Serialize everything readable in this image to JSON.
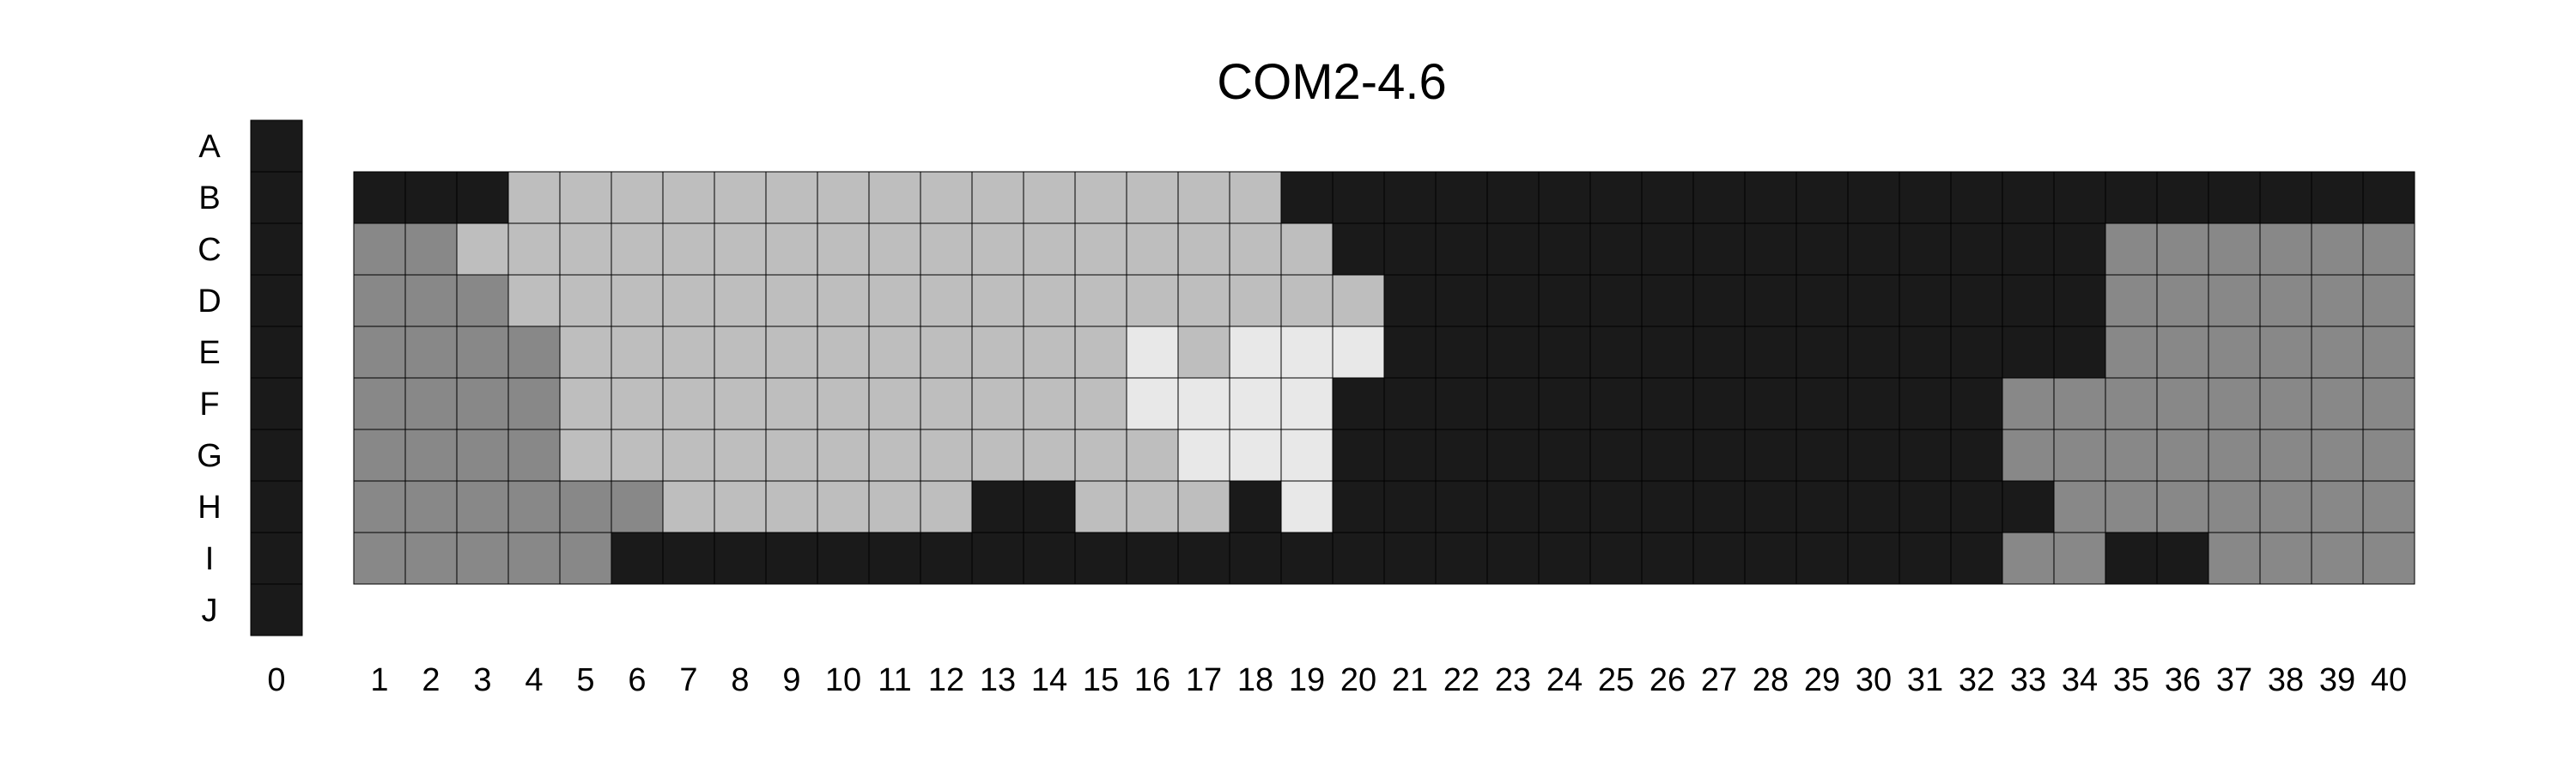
{
  "chart_data": {
    "type": "heatmap",
    "title": "COM2-4.6",
    "row_labels": [
      "A",
      "B",
      "C",
      "D",
      "E",
      "F",
      "G",
      "H",
      "I",
      "J"
    ],
    "col_labels": [
      "0",
      "1",
      "2",
      "3",
      "4",
      "5",
      "6",
      "7",
      "8",
      "9",
      "10",
      "11",
      "12",
      "13",
      "14",
      "15",
      "16",
      "17",
      "18",
      "19",
      "20",
      "21",
      "22",
      "23",
      "24",
      "25",
      "26",
      "27",
      "28",
      "29",
      "30",
      "31",
      "32",
      "33",
      "34",
      "35",
      "36",
      "37",
      "38",
      "39",
      "40"
    ],
    "color_levels": {
      "0": "#1a1a1a",
      "1": "#888888",
      "2": "#bebebe",
      "3": "#e8e8e8"
    },
    "column_0": {
      "rows": [
        "A",
        "B",
        "C",
        "D",
        "E",
        "F",
        "G",
        "H",
        "I",
        "J"
      ],
      "level": 0
    },
    "grid_rows": [
      "B",
      "C",
      "D",
      "E",
      "F",
      "G",
      "H",
      "I"
    ],
    "grid_cols": [
      "1",
      "2",
      "3",
      "4",
      "5",
      "6",
      "7",
      "8",
      "9",
      "10",
      "11",
      "12",
      "13",
      "14",
      "15",
      "16",
      "17",
      "18",
      "19",
      "20",
      "21",
      "22",
      "23",
      "24",
      "25",
      "26",
      "27",
      "28",
      "29",
      "30",
      "31",
      "32",
      "33",
      "34",
      "35",
      "36",
      "37",
      "38",
      "39",
      "40"
    ],
    "values": [
      [
        0,
        0,
        0,
        2,
        2,
        2,
        2,
        2,
        2,
        2,
        2,
        2,
        2,
        2,
        2,
        2,
        2,
        2,
        0,
        0,
        0,
        0,
        0,
        0,
        0,
        0,
        0,
        0,
        0,
        0,
        0,
        0,
        0,
        0,
        0,
        0,
        0,
        0,
        0,
        0
      ],
      [
        1,
        1,
        2,
        2,
        2,
        2,
        2,
        2,
        2,
        2,
        2,
        2,
        2,
        2,
        2,
        2,
        2,
        2,
        2,
        0,
        0,
        0,
        0,
        0,
        0,
        0,
        0,
        0,
        0,
        0,
        0,
        0,
        0,
        0,
        1,
        1,
        1,
        1,
        1,
        1
      ],
      [
        1,
        1,
        1,
        2,
        2,
        2,
        2,
        2,
        2,
        2,
        2,
        2,
        2,
        2,
        2,
        2,
        2,
        2,
        2,
        2,
        0,
        0,
        0,
        0,
        0,
        0,
        0,
        0,
        0,
        0,
        0,
        0,
        0,
        0,
        1,
        1,
        1,
        1,
        1,
        1
      ],
      [
        1,
        1,
        1,
        1,
        2,
        2,
        2,
        2,
        2,
        2,
        2,
        2,
        2,
        2,
        2,
        3,
        2,
        3,
        3,
        3,
        0,
        0,
        0,
        0,
        0,
        0,
        0,
        0,
        0,
        0,
        0,
        0,
        0,
        0,
        1,
        1,
        1,
        1,
        1,
        1
      ],
      [
        1,
        1,
        1,
        1,
        2,
        2,
        2,
        2,
        2,
        2,
        2,
        2,
        2,
        2,
        2,
        3,
        3,
        3,
        3,
        0,
        0,
        0,
        0,
        0,
        0,
        0,
        0,
        0,
        0,
        0,
        0,
        0,
        1,
        1,
        1,
        1,
        1,
        1,
        1,
        1
      ],
      [
        1,
        1,
        1,
        1,
        2,
        2,
        2,
        2,
        2,
        2,
        2,
        2,
        2,
        2,
        2,
        2,
        3,
        3,
        3,
        0,
        0,
        0,
        0,
        0,
        0,
        0,
        0,
        0,
        0,
        0,
        0,
        0,
        1,
        1,
        1,
        1,
        1,
        1,
        1,
        1
      ],
      [
        1,
        1,
        1,
        1,
        1,
        1,
        2,
        2,
        2,
        2,
        2,
        2,
        0,
        0,
        2,
        2,
        2,
        0,
        3,
        0,
        0,
        0,
        0,
        0,
        0,
        0,
        0,
        0,
        0,
        0,
        0,
        0,
        0,
        1,
        1,
        1,
        1,
        1,
        1,
        1
      ],
      [
        1,
        1,
        1,
        1,
        1,
        0,
        0,
        0,
        0,
        0,
        0,
        0,
        0,
        0,
        0,
        0,
        0,
        0,
        0,
        0,
        0,
        0,
        0,
        0,
        0,
        0,
        0,
        0,
        0,
        0,
        0,
        0,
        1,
        1,
        0,
        0,
        1,
        1,
        1,
        1
      ]
    ]
  }
}
